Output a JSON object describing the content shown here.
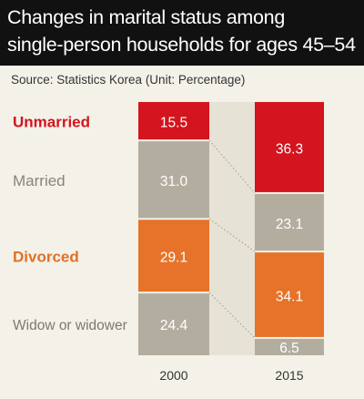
{
  "chart_data": {
    "type": "bar",
    "stacked": true,
    "title": "Changes in marital status among\nsingle-person households for ages 45–54",
    "subtitle": "Source: Statistics Korea (Unit: Percentage)",
    "categories": [
      "2000",
      "2015"
    ],
    "series": [
      {
        "name": "Unmarried",
        "values": [
          15.5,
          36.3
        ],
        "color": "#d4141e",
        "label_color": "#d4141e"
      },
      {
        "name": "Married",
        "values": [
          31.0,
          23.1
        ],
        "color": "#b3ada0",
        "label_color": "#8a8478"
      },
      {
        "name": "Divorced",
        "values": [
          29.1,
          34.1
        ],
        "color": "#e67329",
        "label_color": "#e07026"
      },
      {
        "name": "Widow or widower",
        "values": [
          24.4,
          6.5
        ],
        "color": "#b3ada0",
        "label_color": "#7e786c"
      }
    ],
    "ylim": [
      0,
      100
    ],
    "legend_placement": "left"
  }
}
